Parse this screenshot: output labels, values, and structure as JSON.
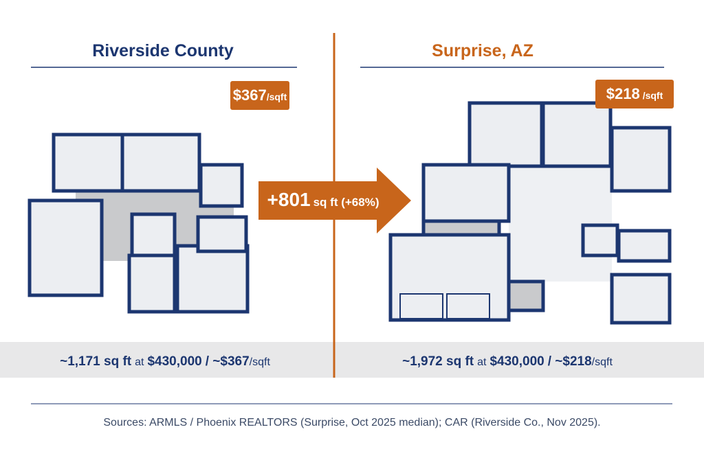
{
  "left": {
    "title": "Riverside County",
    "badge": {
      "price": "$367",
      "unit": "/sqft"
    },
    "caption": {
      "area": "~1,171 sq ft",
      "at": "at",
      "price": "$430,000",
      "per": "/ ~$367",
      "unit": "/sqft"
    }
  },
  "arrow": {
    "amount": "+801",
    "unit": "sq ft (+68%)"
  },
  "right": {
    "title": "Surprise, AZ",
    "badge": {
      "price": "$218",
      "unit": "/sqft"
    },
    "caption": {
      "area": "~1,972 sq ft",
      "at": "at",
      "price": "$430,000",
      "per": "/ ~$218",
      "unit": "/sqft"
    }
  },
  "footer": {
    "sources": "Sources: ARMLS / Phoenix REALTORS (Surprise, Oct 2025 median); CAR (Riverside Co., Nov 2025)."
  }
}
